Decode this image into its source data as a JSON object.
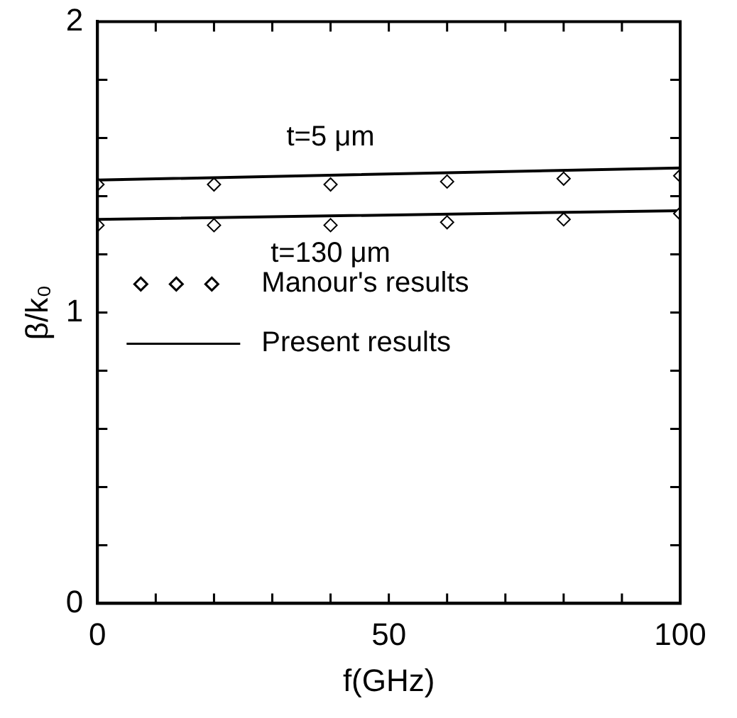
{
  "chart_data": {
    "type": "line",
    "xlabel": "f(GHz)",
    "ylabel": "β/k₀",
    "xlim": [
      0,
      100
    ],
    "ylim": [
      0,
      2
    ],
    "xticks": [
      0,
      {
        "value": 10,
        "label": null
      },
      {
        "value": 20,
        "label": null
      },
      {
        "value": 30,
        "label": null
      },
      {
        "value": 40,
        "label": null
      },
      50,
      {
        "value": 60,
        "label": null
      },
      {
        "value": 70,
        "label": null
      },
      {
        "value": 80,
        "label": null
      },
      {
        "value": 90,
        "label": null
      },
      100
    ],
    "yticks": [
      0,
      {
        "value": 0.2,
        "label": null
      },
      {
        "value": 0.4,
        "label": null
      },
      {
        "value": 0.6,
        "label": null
      },
      {
        "value": 0.8,
        "label": null
      },
      1,
      {
        "value": 1.2,
        "label": null
      },
      {
        "value": 1.4,
        "label": null
      },
      {
        "value": 1.6,
        "label": null
      },
      {
        "value": 1.8,
        "label": null
      },
      2
    ],
    "series": [
      {
        "name": "Manour's results",
        "type": "scatter",
        "marker": "diamond",
        "color": "#000000",
        "x": [
          0,
          20,
          40,
          60,
          80,
          100
        ],
        "values": [
          1.44,
          1.44,
          1.44,
          1.45,
          1.46,
          1.47
        ]
      },
      {
        "type": "scatter",
        "marker": "diamond",
        "color": "#000000",
        "x": [
          0,
          20,
          40,
          60,
          80,
          100
        ],
        "values": [
          1.3,
          1.3,
          1.3,
          1.31,
          1.32,
          1.34
        ]
      },
      {
        "name": "Present results",
        "type": "line",
        "marker": "none",
        "color": "#000000",
        "x": [
          0,
          100
        ],
        "values": [
          1.455,
          1.497
        ]
      },
      {
        "type": "line",
        "marker": "none",
        "color": "#000000",
        "x": [
          0,
          100
        ],
        "values": [
          1.32,
          1.35
        ]
      }
    ],
    "annotations": [
      "t=5 μm",
      "t=130 μm"
    ],
    "legend": "left"
  }
}
